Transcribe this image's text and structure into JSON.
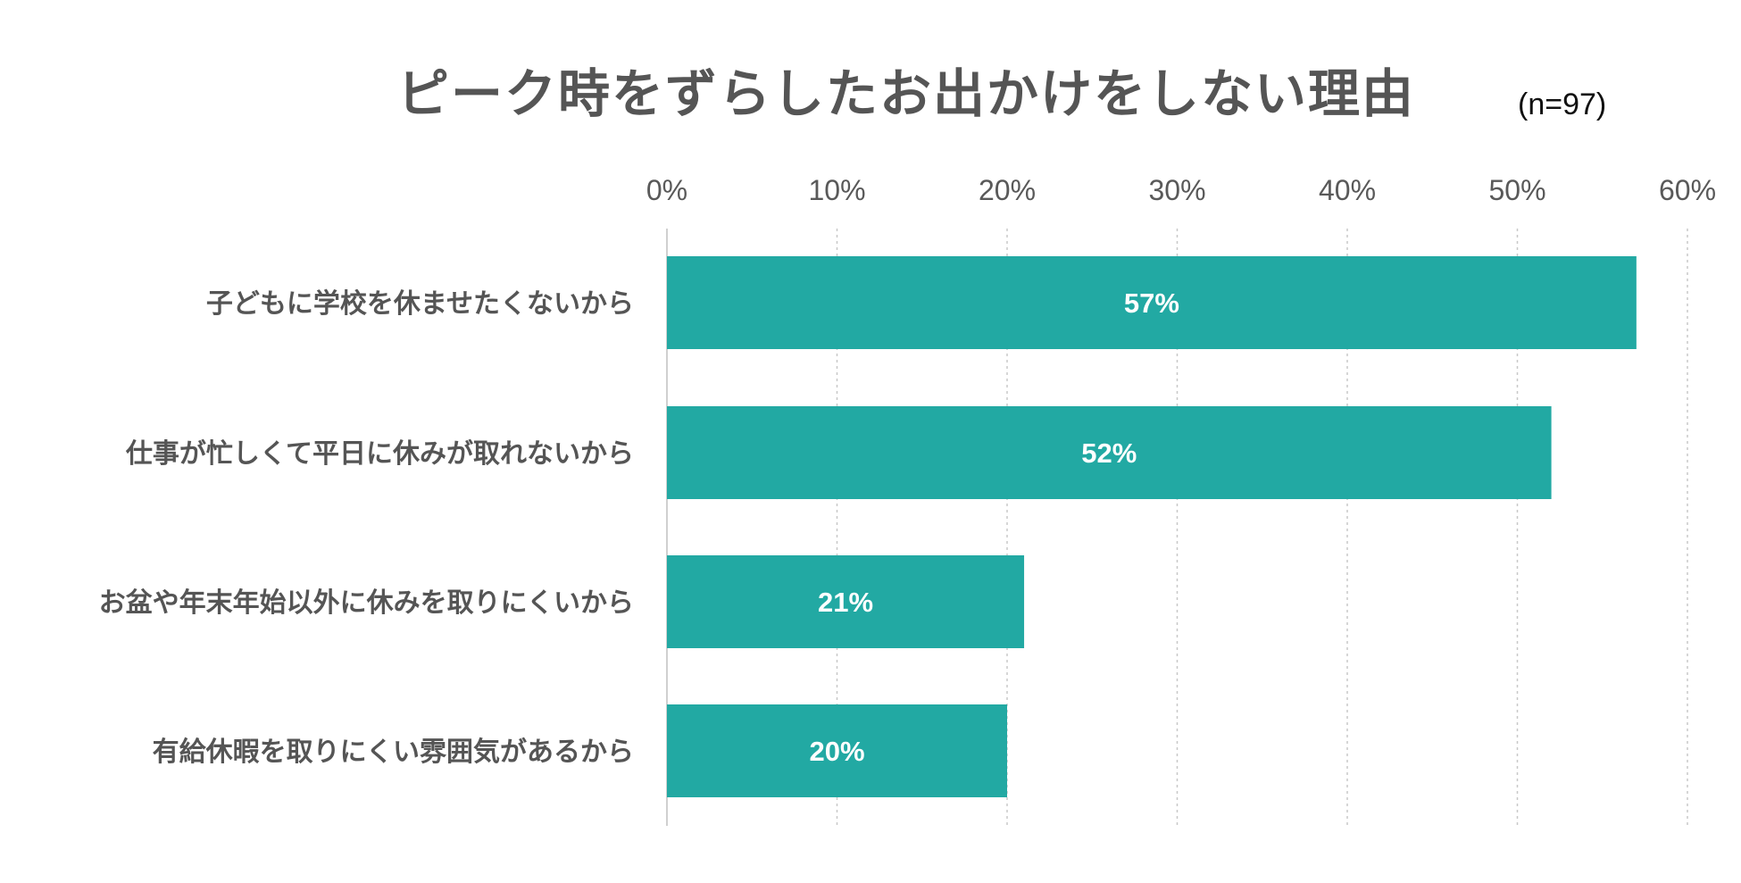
{
  "chart_data": {
    "type": "bar",
    "orientation": "horizontal",
    "title": "ピーク時をずらしたお出かけをしない理由",
    "subtitle": "(n=97)",
    "categories": [
      "子どもに学校を休ませたくないから",
      "仕事が忙しくて平日に休みが取れないから",
      "お盆や年末年始以外に休みを取りにくいから",
      "有給休暇を取りにくい雰囲気があるから"
    ],
    "values": [
      57,
      52,
      21,
      20
    ],
    "data_labels": [
      "57%",
      "52%",
      "21%",
      "20%"
    ],
    "xlim": [
      0,
      60
    ],
    "xticks": [
      0,
      10,
      20,
      30,
      40,
      50,
      60
    ],
    "xtick_labels": [
      "0%",
      "10%",
      "20%",
      "30%",
      "40%",
      "50%",
      "60%"
    ],
    "axis_position": "top",
    "grid": true,
    "bar_color": "#22A9A3",
    "grid_color": "#C8C8C8",
    "axis_line_color": "#D0D0D0"
  }
}
